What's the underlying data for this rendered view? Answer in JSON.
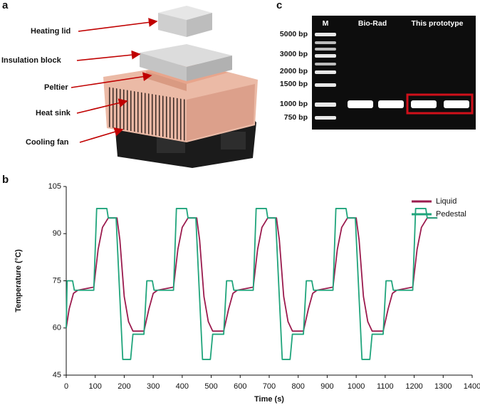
{
  "figure": {
    "panel_a": {
      "label": "a",
      "callouts": [
        "Heating lid",
        "Insulation block",
        "Peltier",
        "Heat sink",
        "Cooling fan"
      ]
    },
    "panel_b_label": "b",
    "panel_c": {
      "label": "c",
      "lanes": [
        "M",
        "Bio-Rad",
        "This prototype"
      ],
      "ladder": [
        "5000 bp",
        "3000 bp",
        "2000 bp",
        "1500 bp",
        "1000 bp",
        "750 bp"
      ]
    }
  },
  "chart_data": {
    "type": "line",
    "x_label": "Time (s)",
    "y_label": "Temperature (°C)",
    "xlim": [
      0,
      1400
    ],
    "xticks": [
      0,
      100,
      200,
      300,
      400,
      500,
      600,
      700,
      800,
      900,
      1000,
      1100,
      1200,
      1300,
      1400
    ],
    "ylim": [
      45,
      105
    ],
    "yticks": [
      45,
      60,
      75,
      90,
      105
    ],
    "grid": false,
    "legend": "top-right",
    "series": [
      {
        "name": "Liquid",
        "color": "#9b1b4e",
        "x": [
          0,
          10,
          25,
          40,
          95,
          110,
          125,
          145,
          175,
          185,
          200,
          215,
          230,
          268,
          285,
          300,
          315,
          370,
          385,
          400,
          420,
          450,
          460,
          475,
          490,
          505,
          543,
          560,
          575,
          590,
          645,
          660,
          675,
          695,
          725,
          735,
          750,
          765,
          780,
          818,
          835,
          850,
          865,
          920,
          935,
          950,
          970,
          1000,
          1010,
          1025,
          1040,
          1055,
          1093,
          1110,
          1125,
          1140,
          1195,
          1210,
          1225,
          1245,
          1280
        ],
        "values": [
          60,
          66,
          71,
          72,
          73,
          85,
          92,
          95,
          95,
          88,
          70,
          62,
          59,
          59,
          66,
          71,
          72,
          73,
          85,
          92,
          95,
          95,
          88,
          70,
          62,
          59,
          59,
          66,
          71,
          72,
          73,
          85,
          92,
          95,
          95,
          88,
          70,
          62,
          59,
          59,
          66,
          71,
          72,
          73,
          85,
          92,
          95,
          95,
          88,
          70,
          62,
          59,
          59,
          66,
          71,
          72,
          73,
          85,
          92,
          95,
          95
        ]
      },
      {
        "name": "Pedestal",
        "color": "#1fa47b",
        "x": [
          0,
          3,
          22,
          28,
          95,
          105,
          140,
          145,
          172,
          195,
          222,
          230,
          268,
          278,
          297,
          303,
          370,
          380,
          415,
          420,
          447,
          470,
          497,
          505,
          543,
          553,
          572,
          578,
          645,
          655,
          690,
          695,
          722,
          745,
          772,
          780,
          818,
          828,
          847,
          853,
          920,
          930,
          965,
          970,
          997,
          1020,
          1047,
          1055,
          1093,
          1103,
          1122,
          1128,
          1195,
          1205,
          1240,
          1245,
          1280
        ],
        "values": [
          60,
          75,
          75,
          72,
          72,
          98,
          98,
          95,
          95,
          50,
          50,
          58,
          58,
          75,
          75,
          72,
          72,
          98,
          98,
          95,
          95,
          50,
          50,
          58,
          58,
          75,
          75,
          72,
          72,
          98,
          98,
          95,
          95,
          50,
          50,
          58,
          58,
          75,
          75,
          72,
          72,
          98,
          98,
          95,
          95,
          50,
          50,
          58,
          58,
          75,
          75,
          72,
          72,
          98,
          98,
          95,
          95
        ]
      }
    ]
  }
}
